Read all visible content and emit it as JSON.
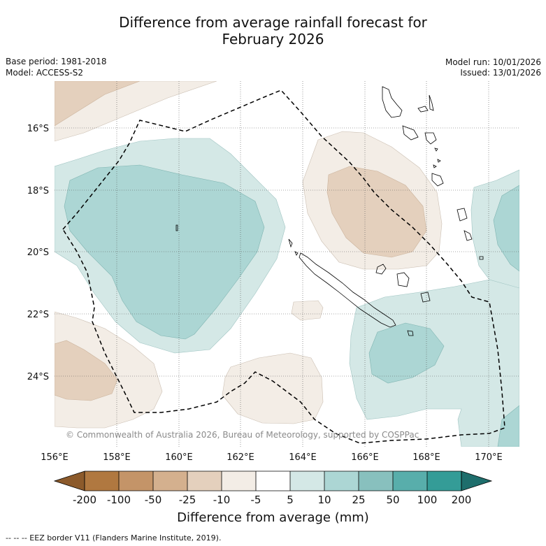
{
  "header": {
    "title_line1": "Difference from average rainfall forecast for",
    "title_line2": "February 2026",
    "base_period": "Base period: 1981-2018",
    "model": "Model: ACCESS-S2",
    "model_run": "Model run: 10/01/2026",
    "issued": "Issued: 13/01/2026"
  },
  "map": {
    "lon_ticks": [
      "156°E",
      "158°E",
      "160°E",
      "162°E",
      "164°E",
      "166°E",
      "168°E",
      "170°E"
    ],
    "lat_ticks": [
      "16°S",
      "18°S",
      "20°S",
      "22°S",
      "24°S"
    ],
    "credit": "© Commonwealth of Australia 2026, Bureau of Meteorology, supported by COSPPac",
    "lon_range": [
      156,
      171
    ],
    "lat_range": [
      -14.5,
      -26.1
    ]
  },
  "colorbar": {
    "labels": [
      "-200",
      "-100",
      "-50",
      "-25",
      "-10",
      "-5",
      "5",
      "10",
      "25",
      "50",
      "100",
      "200"
    ],
    "colors": {
      "lt_m200": "#8c5a2b",
      "m200_m100": "#b07840",
      "m100_m50": "#c49468",
      "m50_m25": "#d4b08e",
      "m25_m10": "#e4d0bd",
      "m10_m5": "#f3ede6",
      "m5_5": "#ffffff",
      "p5_10": "#d4e8e6",
      "p10_25": "#acd6d4",
      "p25_50": "#88c0be",
      "p50_100": "#58aeab",
      "p100_200": "#349c97",
      "gt_200": "#1e6e6c"
    },
    "title": "Difference from average (mm)"
  },
  "footnote": "--  --  -- EEZ border V11 (Flanders Marine Institute, 2019)."
}
